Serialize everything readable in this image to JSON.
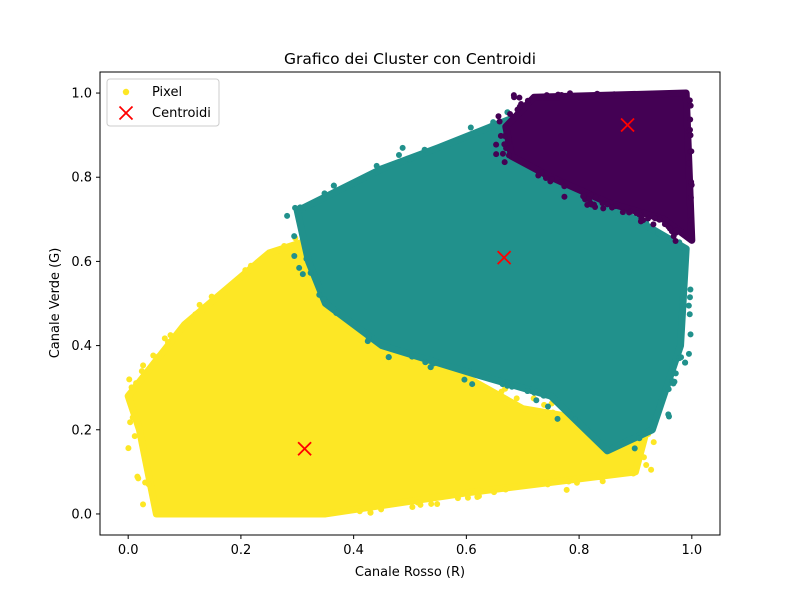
{
  "chart_data": {
    "type": "scatter",
    "title": "Grafico dei Cluster con Centroidi",
    "xlabel": "Canale Rosso (R)",
    "ylabel": "Canale Verde (G)",
    "xlim": [
      -0.05,
      1.05
    ],
    "ylim": [
      -0.05,
      1.05
    ],
    "xticks": [
      0.0,
      0.2,
      0.4,
      0.6,
      0.8,
      1.0
    ],
    "yticks": [
      0.0,
      0.2,
      0.4,
      0.6,
      0.8,
      1.0
    ],
    "grid": false,
    "legend_placement": "top-left",
    "clusters": [
      {
        "label": "Pixel",
        "color": "#fde725",
        "region": [
          [
            0.0,
            0.28
          ],
          [
            0.02,
            0.2
          ],
          [
            0.05,
            0.0
          ],
          [
            0.35,
            0.0
          ],
          [
            0.6,
            0.05
          ],
          [
            0.9,
            0.1
          ],
          [
            0.92,
            0.2
          ],
          [
            0.7,
            0.25
          ],
          [
            0.5,
            0.4
          ],
          [
            0.32,
            0.65
          ],
          [
            0.25,
            0.62
          ],
          [
            0.1,
            0.45
          ]
        ]
      },
      {
        "label": "",
        "color": "#21918c",
        "region": [
          [
            0.3,
            0.72
          ],
          [
            0.45,
            0.82
          ],
          [
            0.55,
            0.87
          ],
          [
            0.7,
            0.95
          ],
          [
            0.75,
            0.8
          ],
          [
            0.9,
            0.7
          ],
          [
            0.99,
            0.63
          ],
          [
            0.98,
            0.4
          ],
          [
            0.93,
            0.2
          ],
          [
            0.85,
            0.15
          ],
          [
            0.75,
            0.28
          ],
          [
            0.62,
            0.33
          ],
          [
            0.45,
            0.4
          ],
          [
            0.35,
            0.5
          ],
          [
            0.32,
            0.6
          ]
        ]
      },
      {
        "label": "",
        "color": "#440154",
        "region": [
          [
            0.67,
            0.92
          ],
          [
            0.72,
            0.99
          ],
          [
            0.99,
            1.0
          ],
          [
            1.0,
            0.65
          ],
          [
            0.95,
            0.7
          ],
          [
            0.85,
            0.74
          ],
          [
            0.75,
            0.8
          ],
          [
            0.68,
            0.85
          ]
        ]
      }
    ],
    "centroids": {
      "label": "Centroidi",
      "color": "#ff0000",
      "points": [
        {
          "x": 0.313,
          "y": 0.155
        },
        {
          "x": 0.667,
          "y": 0.609
        },
        {
          "x": 0.886,
          "y": 0.924
        }
      ]
    }
  }
}
